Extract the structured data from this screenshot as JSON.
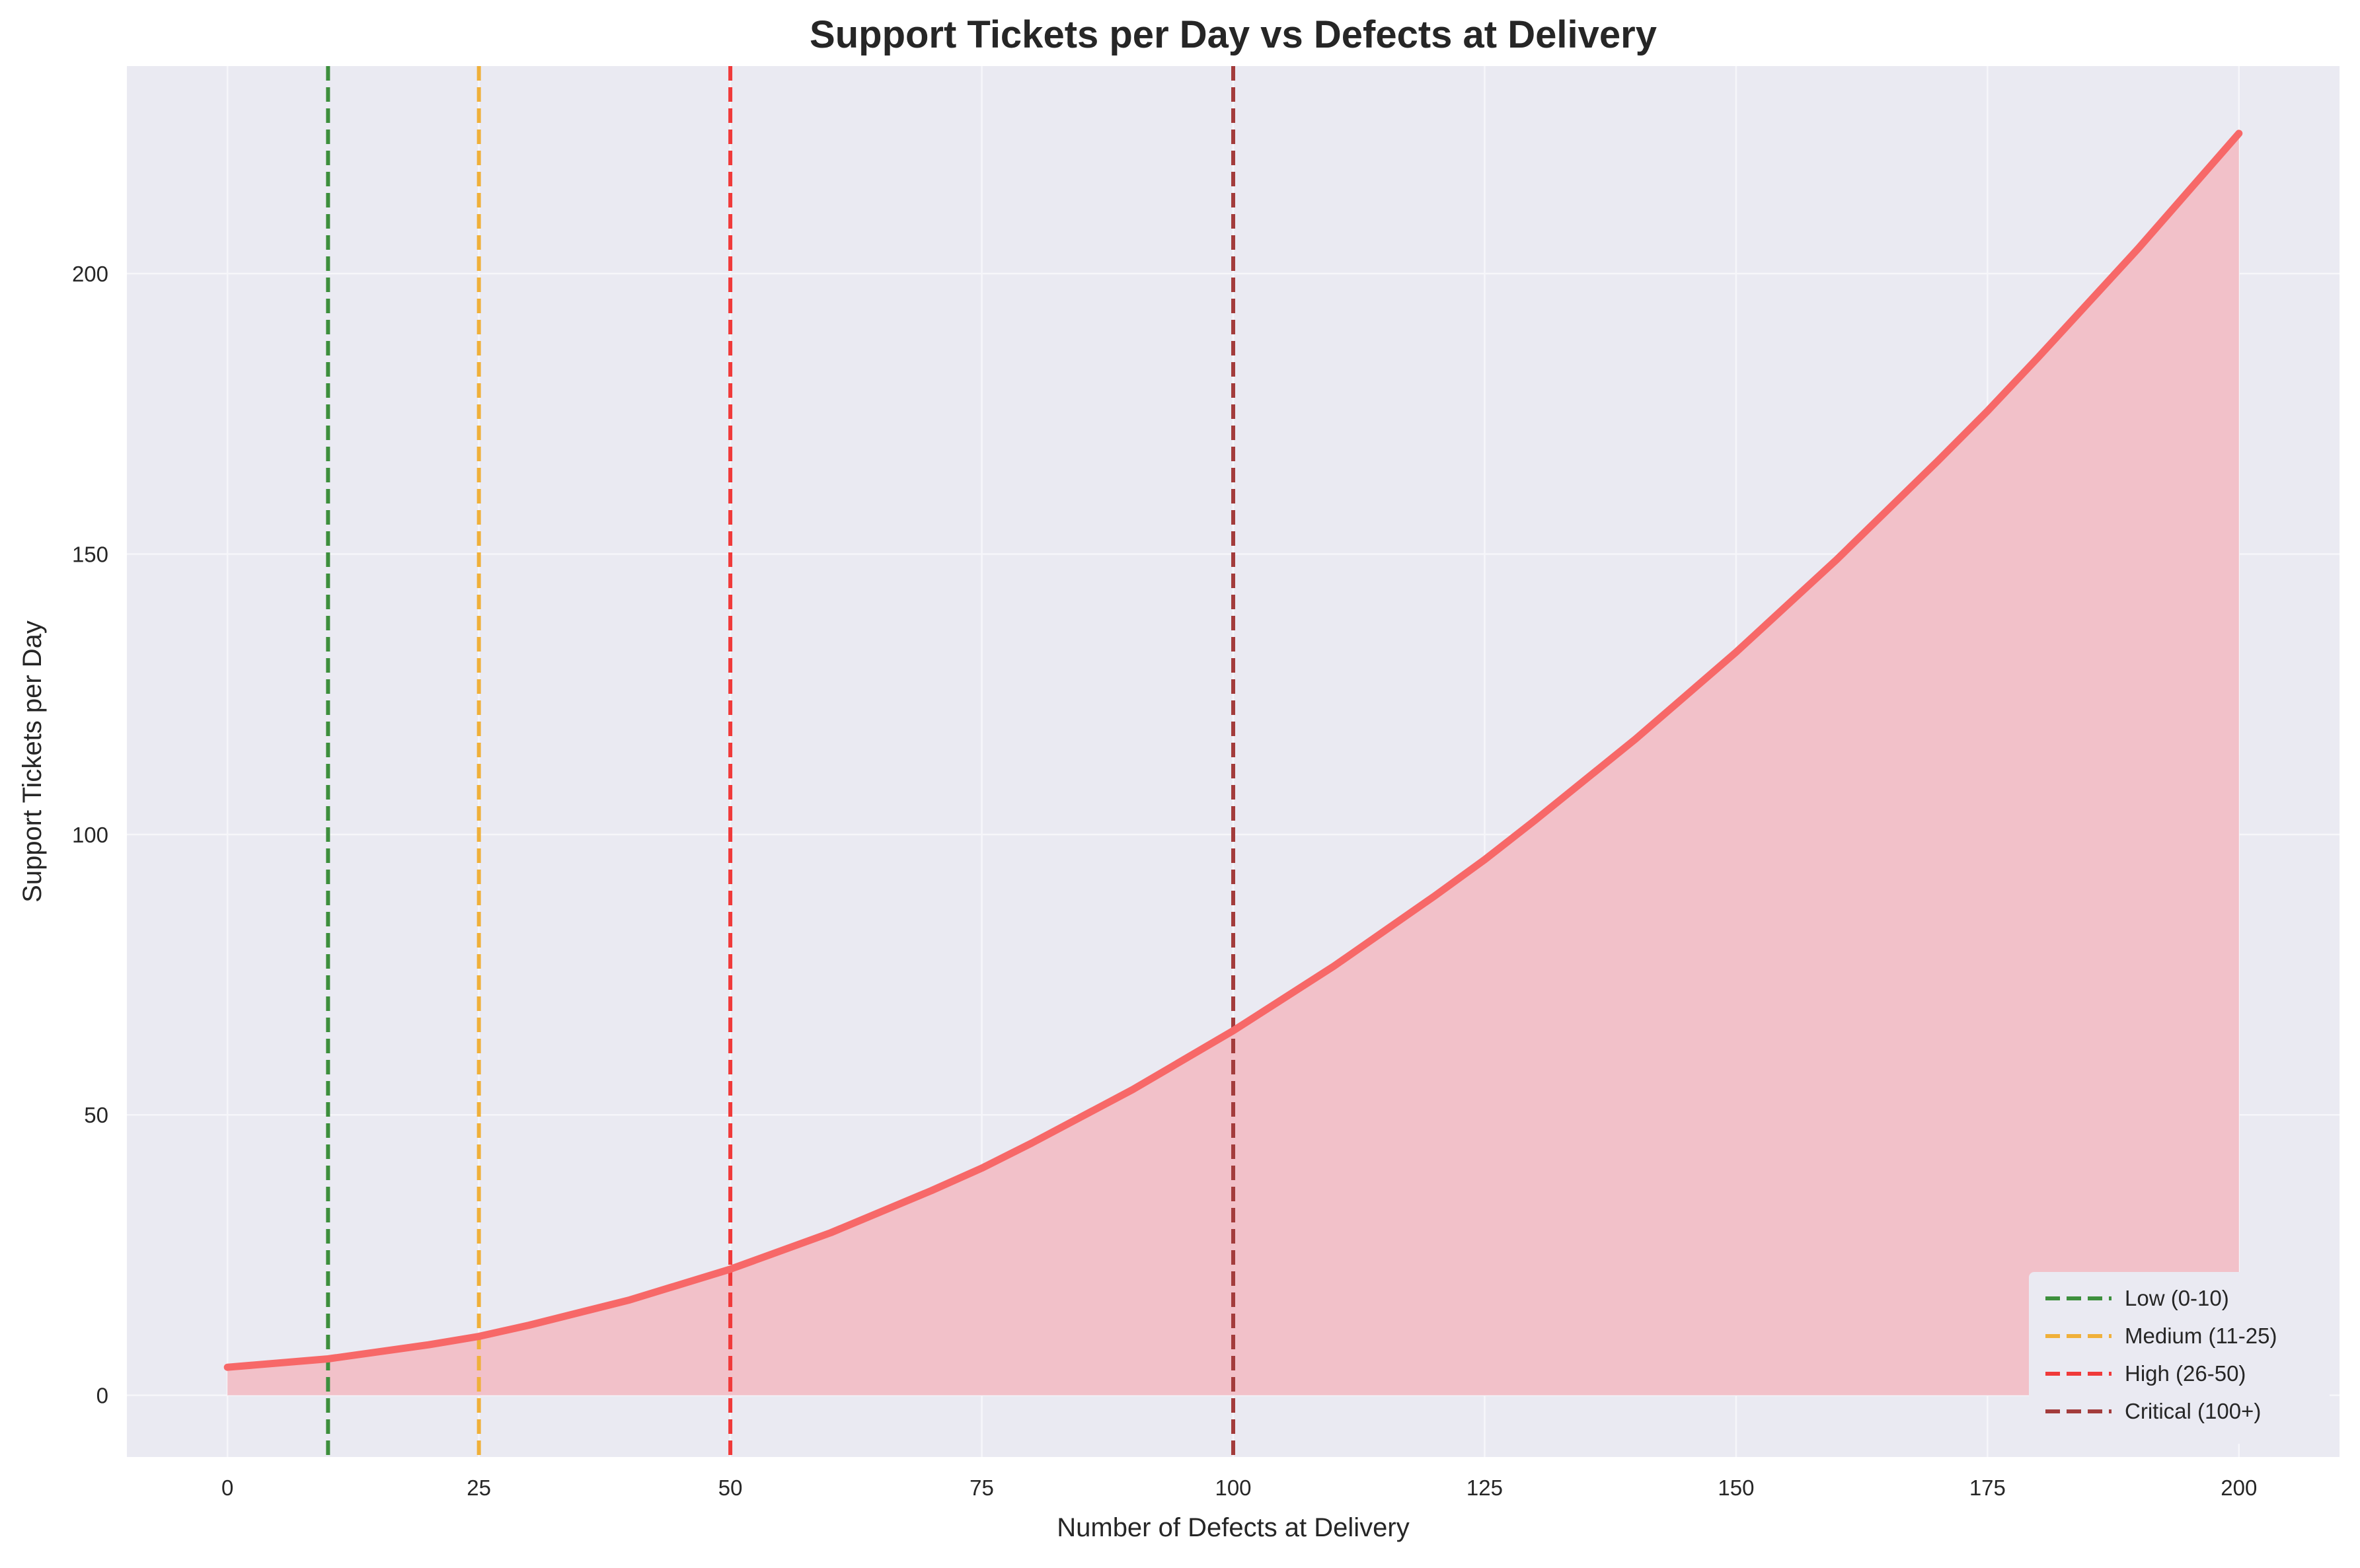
{
  "chart_data": {
    "type": "line",
    "title": "Support Tickets per Day vs Defects at Delivery",
    "xlabel": "Number of Defects at Delivery",
    "ylabel": "Support Tickets per Day",
    "xlim": [
      -10,
      210
    ],
    "ylim": [
      -11,
      237
    ],
    "x_ticks": [
      0,
      25,
      50,
      75,
      100,
      125,
      150,
      175,
      200
    ],
    "y_ticks": [
      0,
      50,
      100,
      150,
      200
    ],
    "grid": true,
    "legend_position": "bottom-right",
    "series": [
      {
        "x": [
          0,
          10,
          20,
          25,
          30,
          40,
          50,
          60,
          70,
          75,
          80,
          90,
          100,
          110,
          120,
          125,
          130,
          140,
          150,
          160,
          170,
          175,
          180,
          190,
          200
        ],
        "y": [
          5,
          6.5,
          9,
          10.5,
          12.5,
          17,
          22.5,
          29,
          36.5,
          40.5,
          45,
          54.5,
          65,
          76.5,
          89,
          95.5,
          102.5,
          117,
          132.5,
          149,
          166.5,
          175.5,
          185,
          204.5,
          225
        ],
        "color": "#f76868",
        "fill": "#f2c1c9"
      }
    ],
    "threshold_lines": [
      {
        "name": "Low (0-10)",
        "x": 10,
        "color": "#3d8f3d"
      },
      {
        "name": "Medium (11-25)",
        "x": 25,
        "color": "#f0b03a"
      },
      {
        "name": "High (26-50)",
        "x": 50,
        "color": "#f03a3a"
      },
      {
        "name": "Critical (100+)",
        "x": 100,
        "color": "#a33c3c"
      }
    ],
    "colors": {
      "plot_background": "#eaeaf2",
      "grid": "#f6f6fa"
    }
  }
}
